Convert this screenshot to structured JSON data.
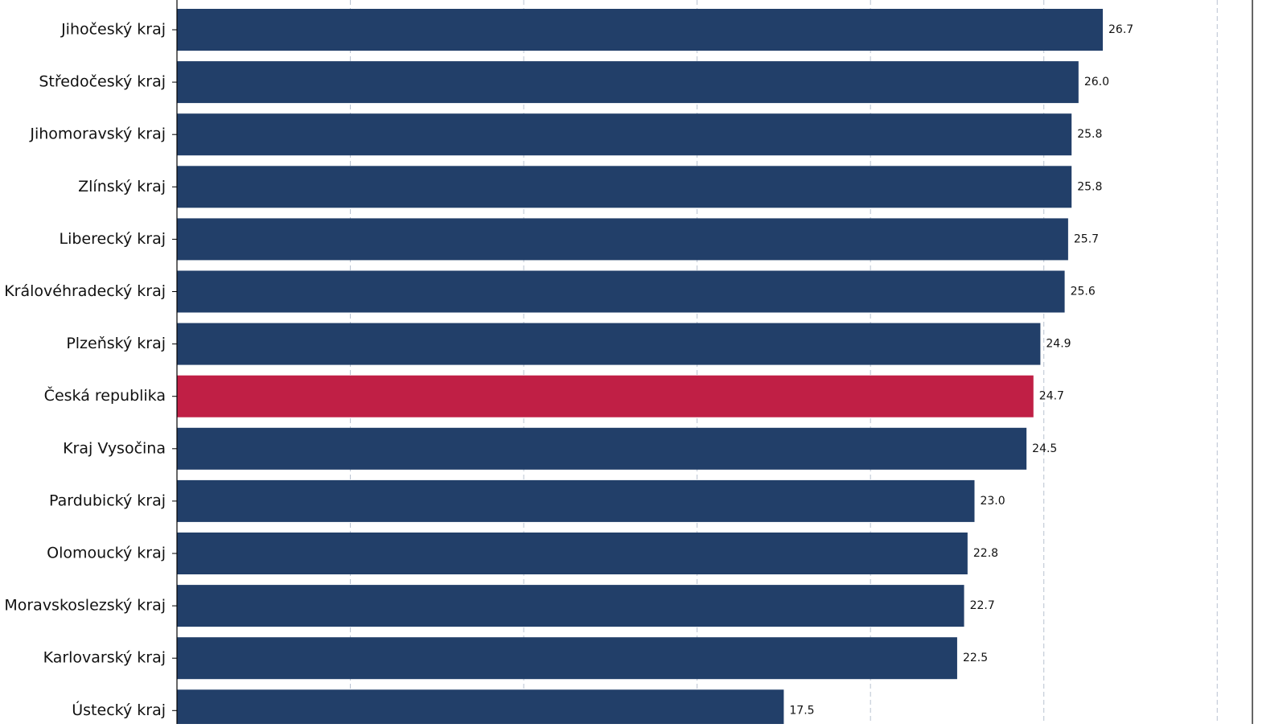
{
  "chart_data": {
    "type": "bar",
    "orientation": "horizontal",
    "title": "",
    "xlabel": "",
    "ylabel": "",
    "xlim": [
      0,
      30
    ],
    "x_grid_step": 5,
    "grid": true,
    "categories": [
      "Jihočeský kraj",
      "Středočeský kraj",
      "Jihomoravský kraj",
      "Zlínský kraj",
      "Liberecký kraj",
      "Královéhradecký kraj",
      "Plzeňský kraj",
      "Česká republika",
      "Kraj Vysočina",
      "Pardubický kraj",
      "Olomoucký kraj",
      "Moravskoslezský kraj",
      "Karlovarský kraj",
      "Ústecký kraj"
    ],
    "values": [
      26.7,
      26.0,
      25.8,
      25.8,
      25.7,
      25.6,
      24.9,
      24.7,
      24.5,
      23.0,
      22.8,
      22.7,
      22.5,
      17.5
    ],
    "value_labels": [
      "26.7",
      "26.0",
      "25.8",
      "25.8",
      "25.7",
      "25.6",
      "24.9",
      "24.7",
      "24.5",
      "23.0",
      "22.8",
      "22.7",
      "22.5",
      "17.5"
    ],
    "highlight_category": "Česká republika",
    "colors": {
      "bar": "#223f69",
      "highlight": "#c01f45",
      "grid": "#b8c2d0",
      "text": "#111111"
    }
  }
}
